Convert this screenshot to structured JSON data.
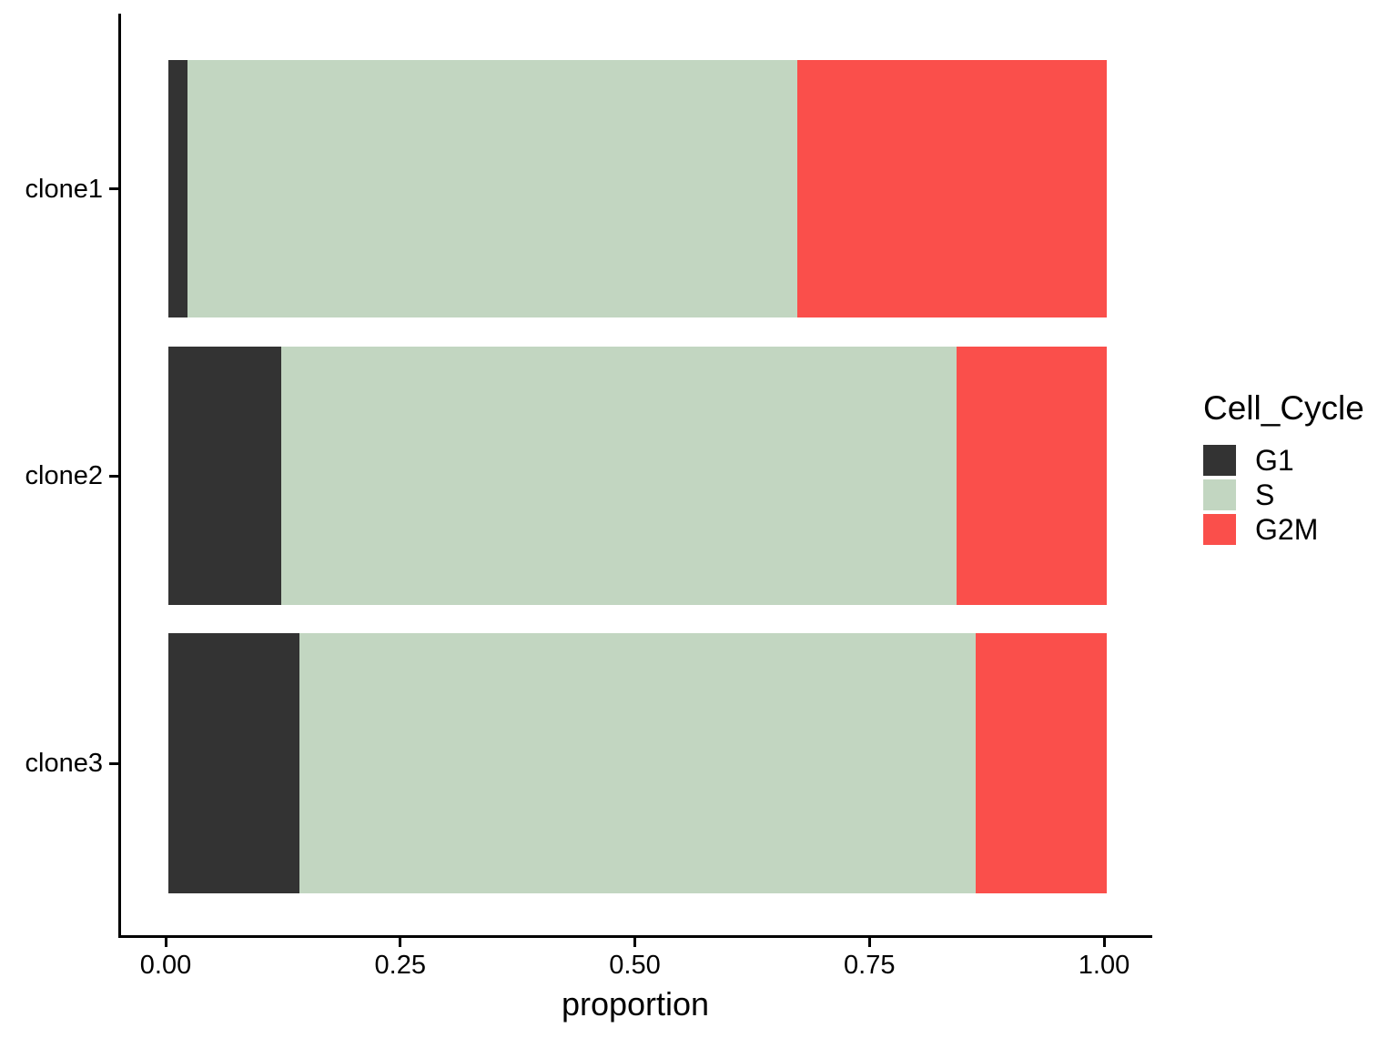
{
  "chart_data": {
    "type": "bar",
    "orientation": "horizontal",
    "stacked": true,
    "title": "",
    "xlabel": "proportion",
    "ylabel": "",
    "xlim": [
      0,
      1
    ],
    "grid": false,
    "background": "#ffffff",
    "axis_color": "#000000",
    "categories": [
      "clone1",
      "clone2",
      "clone3"
    ],
    "series": [
      {
        "name": "G1",
        "color": "#333333",
        "values": [
          0.02,
          0.12,
          0.14
        ]
      },
      {
        "name": "S",
        "color": "#C2D6C1",
        "values": [
          0.65,
          0.72,
          0.72
        ]
      },
      {
        "name": "G2M",
        "color": "#FA4F4B",
        "values": [
          0.33,
          0.16,
          0.14
        ]
      }
    ],
    "x_ticks": [
      {
        "value": 0.0,
        "label": "0.00"
      },
      {
        "value": 0.25,
        "label": "0.25"
      },
      {
        "value": 0.5,
        "label": "0.50"
      },
      {
        "value": 0.75,
        "label": "0.75"
      },
      {
        "value": 1.0,
        "label": "1.00"
      }
    ],
    "legend": {
      "title": "Cell_Cycle",
      "position": "right",
      "items": [
        {
          "label": "G1",
          "color": "#333333"
        },
        {
          "label": "S",
          "color": "#C2D6C1"
        },
        {
          "label": "G2M",
          "color": "#FA4F4B"
        }
      ]
    }
  }
}
